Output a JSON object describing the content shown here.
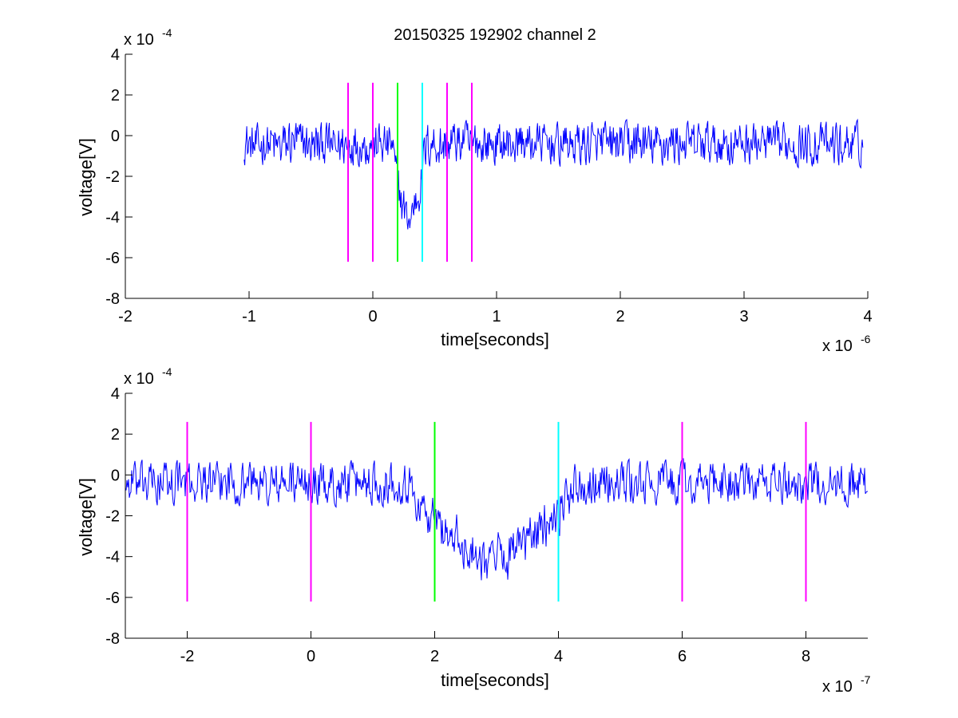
{
  "figure_title": "20150325 192902 channel 2",
  "chart_data": [
    {
      "type": "line",
      "title": "20150325 192902 channel 2",
      "xlabel": "time[seconds]",
      "ylabel": "voltage[V]",
      "x_multiplier_label": "x 10",
      "x_exponent_label": "-6",
      "y_multiplier_label": "x 10",
      "y_exponent_label": "-4",
      "xlim": [
        -2,
        4
      ],
      "ylim": [
        -8,
        4
      ],
      "x_ticks": [
        -2,
        -1,
        0,
        1,
        2,
        3,
        4
      ],
      "x_tick_labels": [
        "-2",
        "-1",
        "0",
        "1",
        "2",
        "3",
        "4"
      ],
      "y_ticks": [
        -8,
        -6,
        -4,
        -2,
        0,
        2,
        4
      ],
      "y_tick_labels": [
        "-8",
        "-6",
        "-4",
        "-2",
        "0",
        "2",
        "4"
      ],
      "grid": false,
      "signal": {
        "color": "#0000ff",
        "x_start": -1.04,
        "x_end": 3.96,
        "baseline": -0.4,
        "noise_amplitude": 1.0,
        "quantization_step": 0.8,
        "dip_start": 0.15,
        "dip_end": 0.5,
        "dip_depth": -3.6
      },
      "markers": [
        {
          "x": -0.2,
          "color": "#ff00ff"
        },
        {
          "x": 0.0,
          "color": "#ff00ff"
        },
        {
          "x": 0.2,
          "color": "#00ff00"
        },
        {
          "x": 0.4,
          "color": "#00ffff"
        },
        {
          "x": 0.6,
          "color": "#ff00ff"
        },
        {
          "x": 0.8,
          "color": "#ff00ff"
        }
      ],
      "marker_range": [
        -6.2,
        2.6
      ]
    },
    {
      "type": "line",
      "title": "",
      "xlabel": "time[seconds]",
      "ylabel": "voltage[V]",
      "x_multiplier_label": "x 10",
      "x_exponent_label": "-7",
      "y_multiplier_label": "x 10",
      "y_exponent_label": "-4",
      "xlim": [
        -3,
        9
      ],
      "ylim": [
        -8,
        4
      ],
      "x_ticks": [
        -2,
        0,
        2,
        4,
        6,
        8
      ],
      "x_tick_labels": [
        "-2",
        "0",
        "2",
        "4",
        "6",
        "8"
      ],
      "y_ticks": [
        -8,
        -6,
        -4,
        -2,
        0,
        2,
        4
      ],
      "y_tick_labels": [
        "-8",
        "-6",
        "-4",
        "-2",
        "0",
        "2",
        "4"
      ],
      "grid": false,
      "signal": {
        "color": "#0000ff",
        "x_start": -3,
        "x_end": 9,
        "baseline": -0.4,
        "noise_amplitude": 1.0,
        "quantization_step": 0.8,
        "dip_start": 1.5,
        "dip_end": 5.0,
        "dip_depth": -3.6
      },
      "markers": [
        {
          "x": -2,
          "color": "#ff00ff"
        },
        {
          "x": 0,
          "color": "#ff00ff"
        },
        {
          "x": 2,
          "color": "#00ff00"
        },
        {
          "x": 4,
          "color": "#00ffff"
        },
        {
          "x": 6,
          "color": "#ff00ff"
        },
        {
          "x": 8,
          "color": "#ff00ff"
        }
      ],
      "marker_range": [
        -6.2,
        2.6
      ]
    }
  ]
}
